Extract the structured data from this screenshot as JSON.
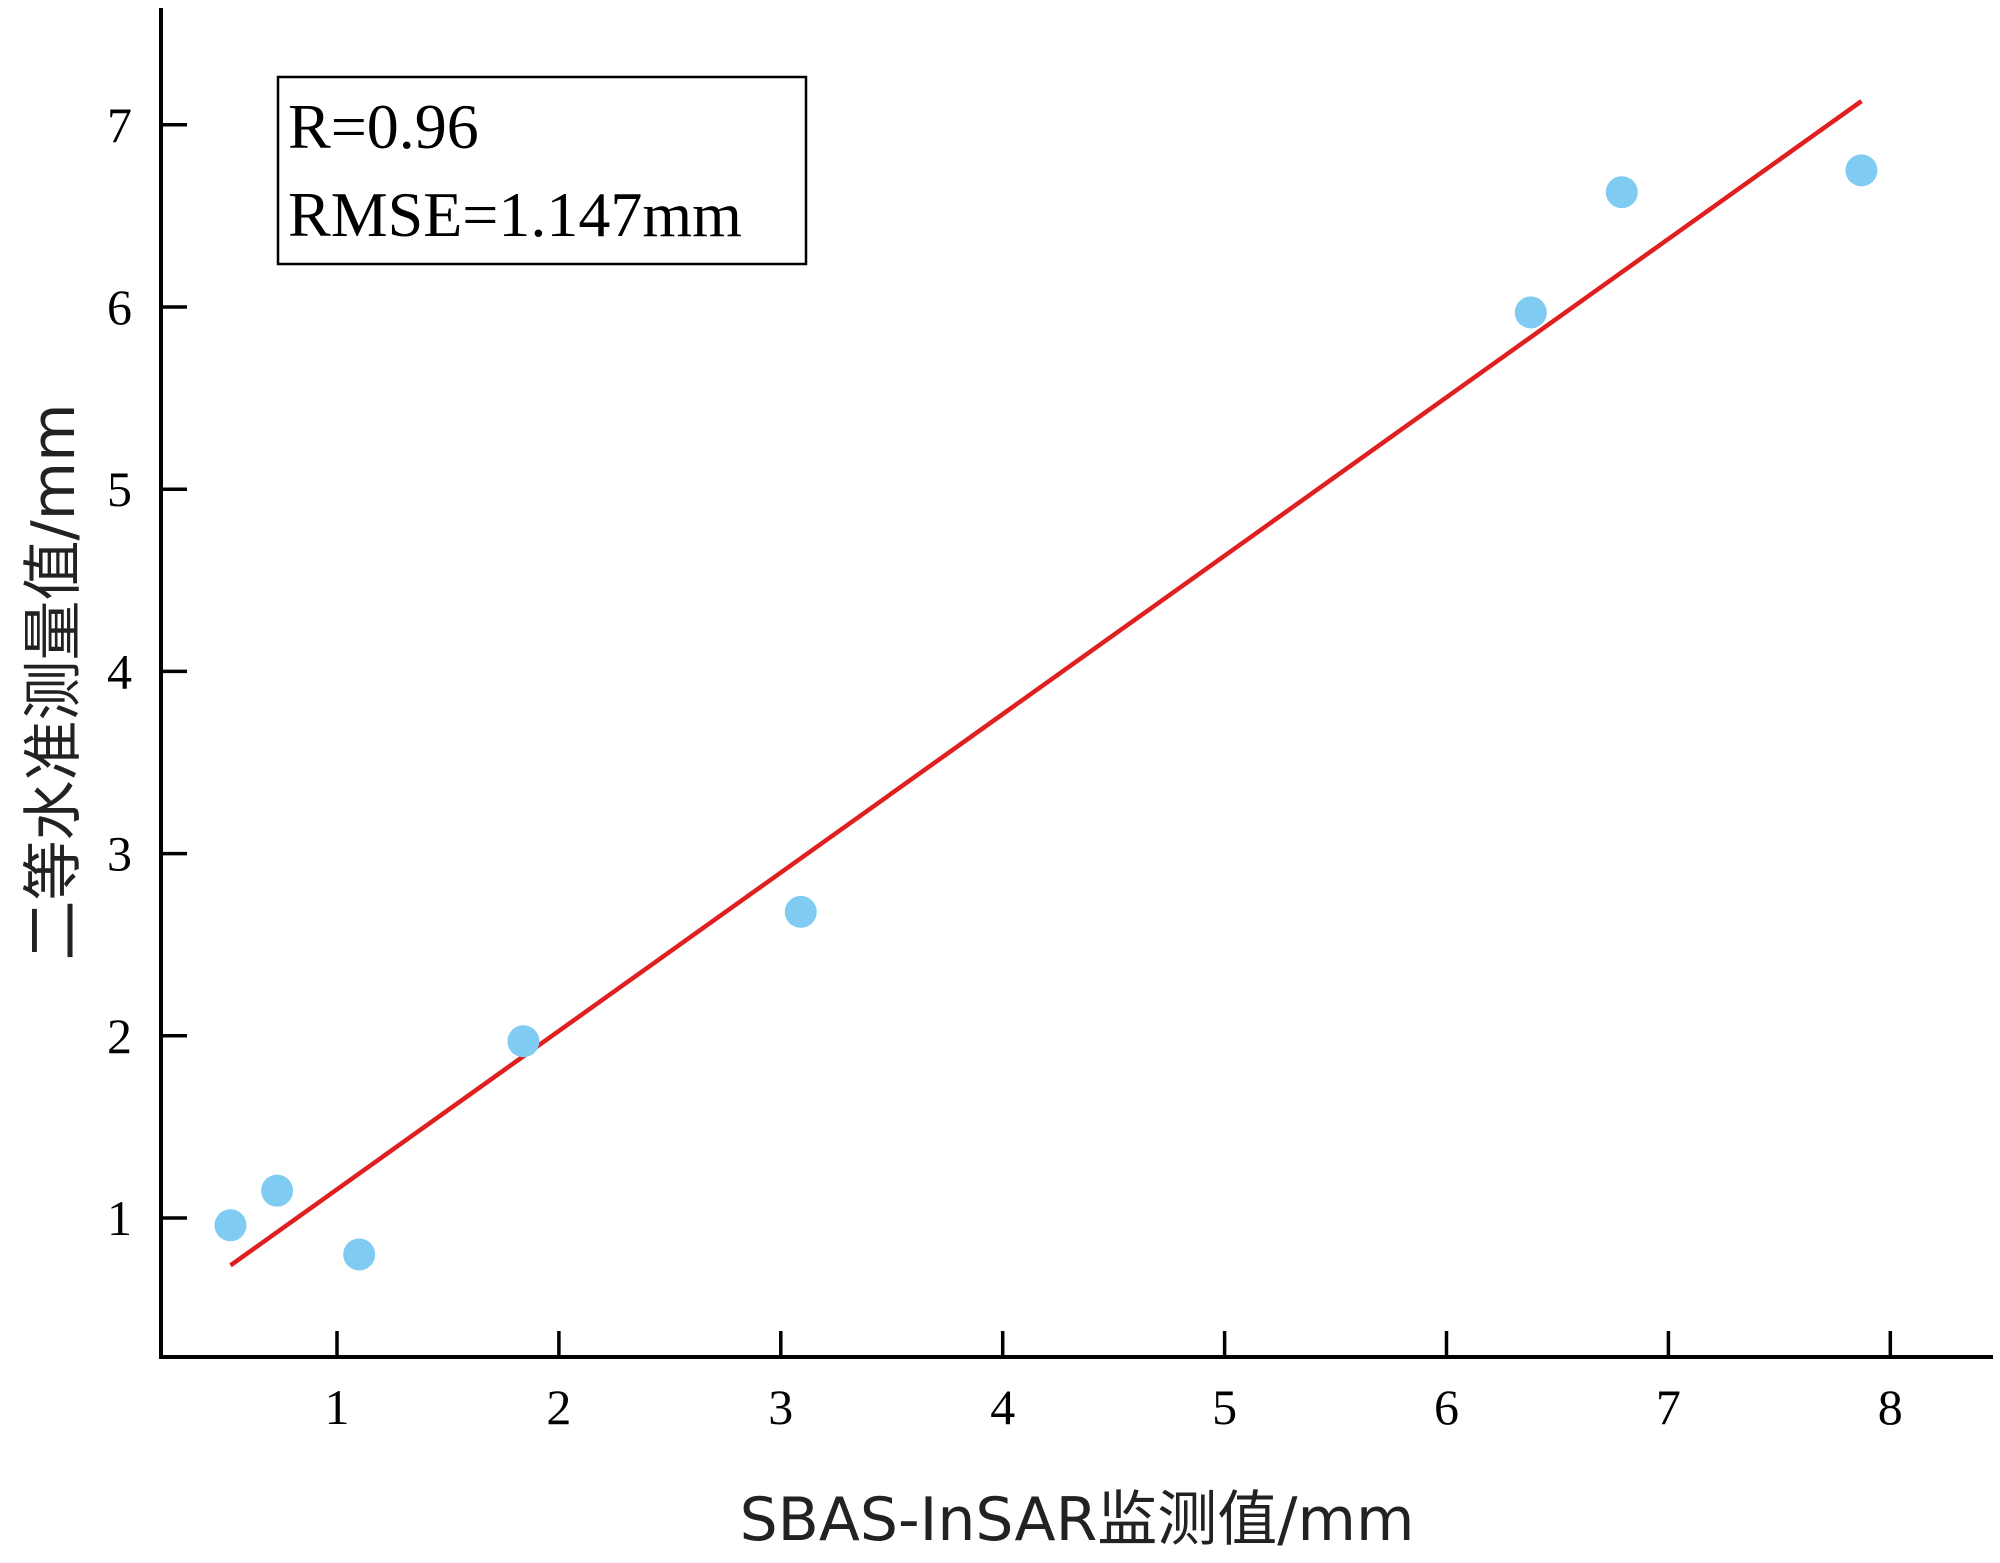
{
  "chart_data": {
    "type": "scatter",
    "xlabel": "SBAS-InSAR监测值/mm",
    "ylabel": "二等水准测量值/mm",
    "xlim": [
      0.2,
      8.4
    ],
    "ylim": [
      0.2,
      7.6
    ],
    "x_ticks": [
      1,
      2,
      3,
      4,
      5,
      6,
      7,
      8
    ],
    "y_ticks": [
      1,
      2,
      3,
      4,
      5,
      6,
      7
    ],
    "grid": false,
    "points": [
      {
        "x": 0.52,
        "y": 0.96
      },
      {
        "x": 0.73,
        "y": 1.15
      },
      {
        "x": 1.1,
        "y": 0.8
      },
      {
        "x": 1.84,
        "y": 1.97
      },
      {
        "x": 3.09,
        "y": 2.68
      },
      {
        "x": 6.38,
        "y": 5.97
      },
      {
        "x": 6.79,
        "y": 6.63
      },
      {
        "x": 7.87,
        "y": 6.75
      }
    ],
    "fit_line": {
      "x": [
        0.52,
        7.87
      ],
      "y": [
        0.74,
        7.13
      ]
    },
    "annotations": [
      "R=0.96",
      "RMSE=1.147mm"
    ],
    "colors": {
      "points": "#7fcbf2",
      "fit_line": "#e02020",
      "axes": "#000000"
    }
  }
}
